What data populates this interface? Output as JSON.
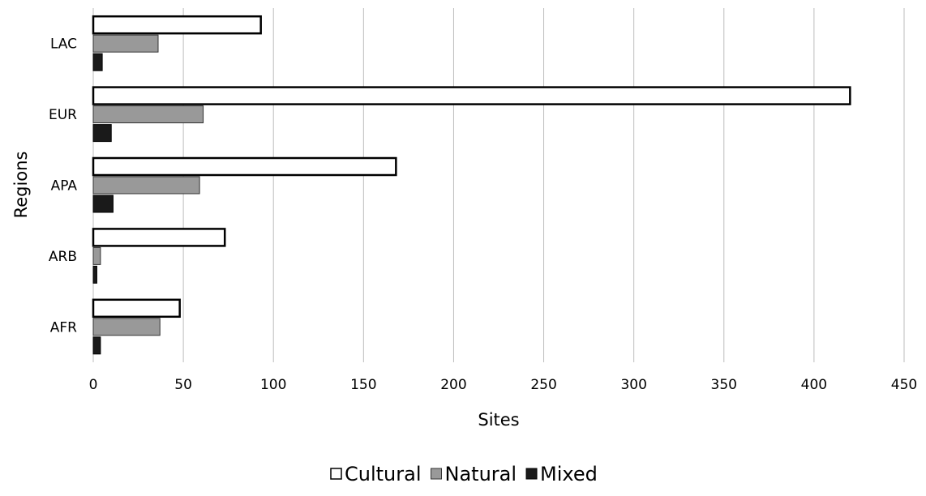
{
  "chart_data": {
    "type": "bar",
    "orientation": "horizontal",
    "categories": [
      "LAC",
      "EUR",
      "APA",
      "ARB",
      "AFR"
    ],
    "series": [
      {
        "name": "Cultural",
        "values": [
          93,
          420,
          168,
          73,
          48
        ],
        "color": "#ffffff",
        "stroke": "#000000"
      },
      {
        "name": "Natural",
        "values": [
          36,
          61,
          59,
          4,
          37
        ],
        "color": "#999999",
        "stroke": "#333333"
      },
      {
        "name": "Mixed",
        "values": [
          5,
          10,
          11,
          2,
          4
        ],
        "color": "#1a1a1a",
        "stroke": "#000000"
      }
    ],
    "xlabel": "Sites",
    "ylabel": "Regions",
    "xlim": [
      0,
      450
    ],
    "xticks": [
      "0",
      "50",
      "100",
      "150",
      "200",
      "250",
      "300",
      "350",
      "400",
      "450"
    ],
    "grid": "vertical",
    "legend_position": "bottom"
  }
}
